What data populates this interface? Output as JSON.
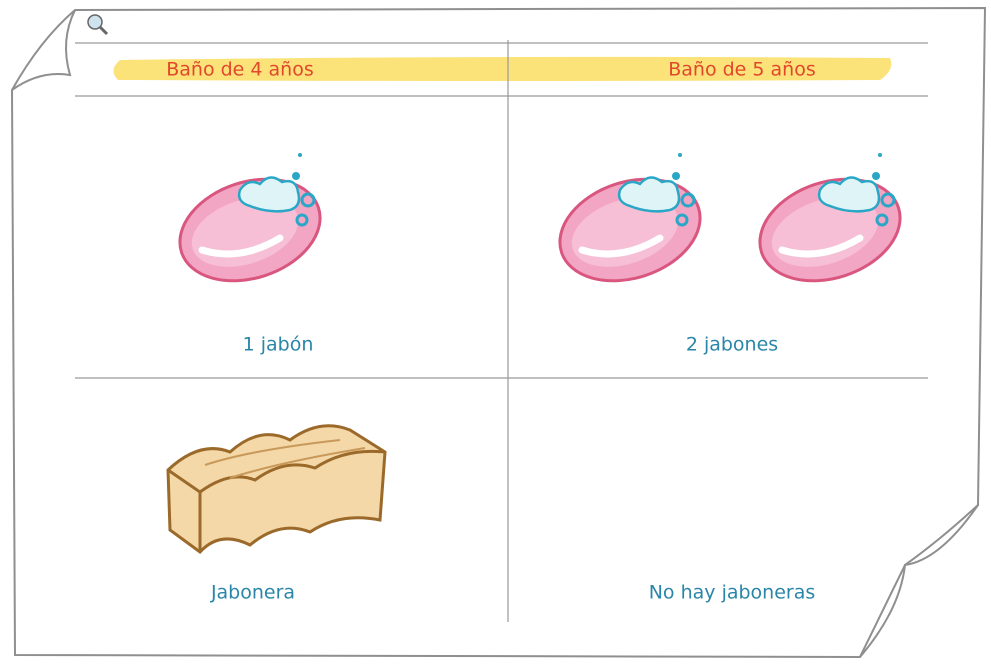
{
  "table": {
    "headers": [
      "Baño de 4 años",
      "Baño de 5 años"
    ],
    "rows": [
      [
        "1 jabón",
        "2 jabones"
      ],
      [
        "Jabonera",
        "No hay jaboneras"
      ]
    ]
  }
}
